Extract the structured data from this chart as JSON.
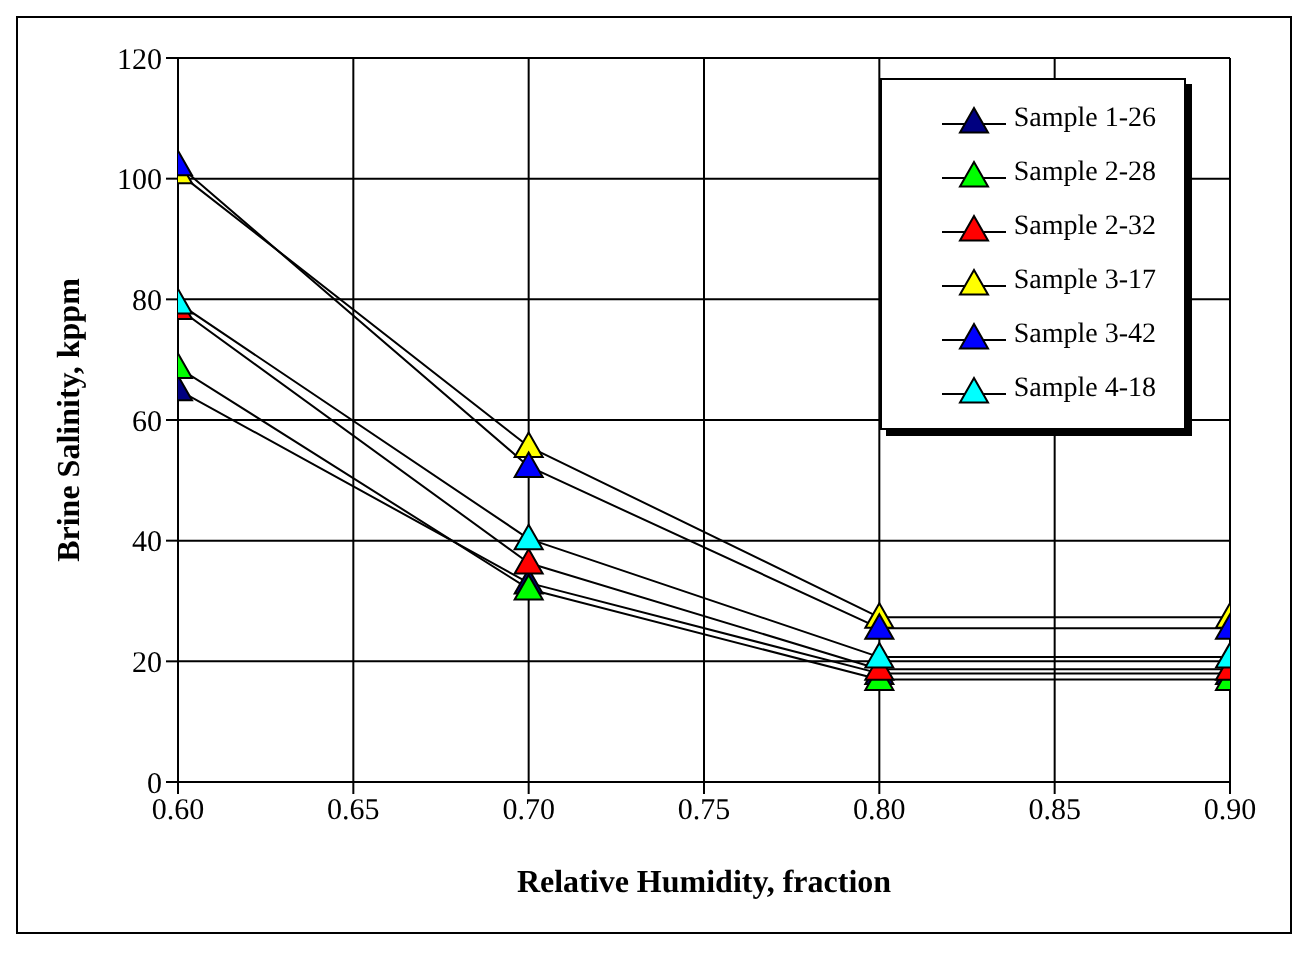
{
  "chart_data": {
    "type": "line",
    "xlabel": "Relative Humidity, fraction",
    "ylabel": "Brine Salinity, kppm",
    "x": [
      0.6,
      0.7,
      0.8,
      0.9
    ],
    "series": [
      {
        "name": "Sample 1-26",
        "color": "#000080",
        "values": [
          65,
          33,
          18,
          18
        ]
      },
      {
        "name": "Sample 2-28",
        "color": "#00ff00",
        "values": [
          68.7,
          32,
          17,
          17
        ]
      },
      {
        "name": "Sample 2-32",
        "color": "#ff0000",
        "values": [
          78.5,
          36.3,
          18.7,
          18.7
        ]
      },
      {
        "name": "Sample 3-17",
        "color": "#ffff00",
        "values": [
          101,
          55.6,
          27.3,
          27.3
        ]
      },
      {
        "name": "Sample 3-42",
        "color": "#0000ff",
        "values": [
          102.3,
          52.3,
          25.5,
          25.5
        ]
      },
      {
        "name": "Sample 4-18",
        "color": "#00ffff",
        "values": [
          79.4,
          40.3,
          20.7,
          20.7
        ]
      }
    ],
    "xlim": [
      0.6,
      0.9
    ],
    "xticks": [
      {
        "value": 0.6,
        "label": "0.60"
      },
      {
        "value": 0.65,
        "label": "0.65"
      },
      {
        "value": 0.7,
        "label": "0.70"
      },
      {
        "value": 0.75,
        "label": "0.75"
      },
      {
        "value": 0.8,
        "label": "0.80"
      },
      {
        "value": 0.85,
        "label": "0.85"
      },
      {
        "value": 0.9,
        "label": "0.90"
      }
    ],
    "ylim": [
      0,
      120
    ],
    "yticks": [
      0,
      20,
      40,
      60,
      80,
      100,
      120
    ],
    "grid": true,
    "legend": "top right",
    "marker": "triangle",
    "line_style": "solid"
  }
}
